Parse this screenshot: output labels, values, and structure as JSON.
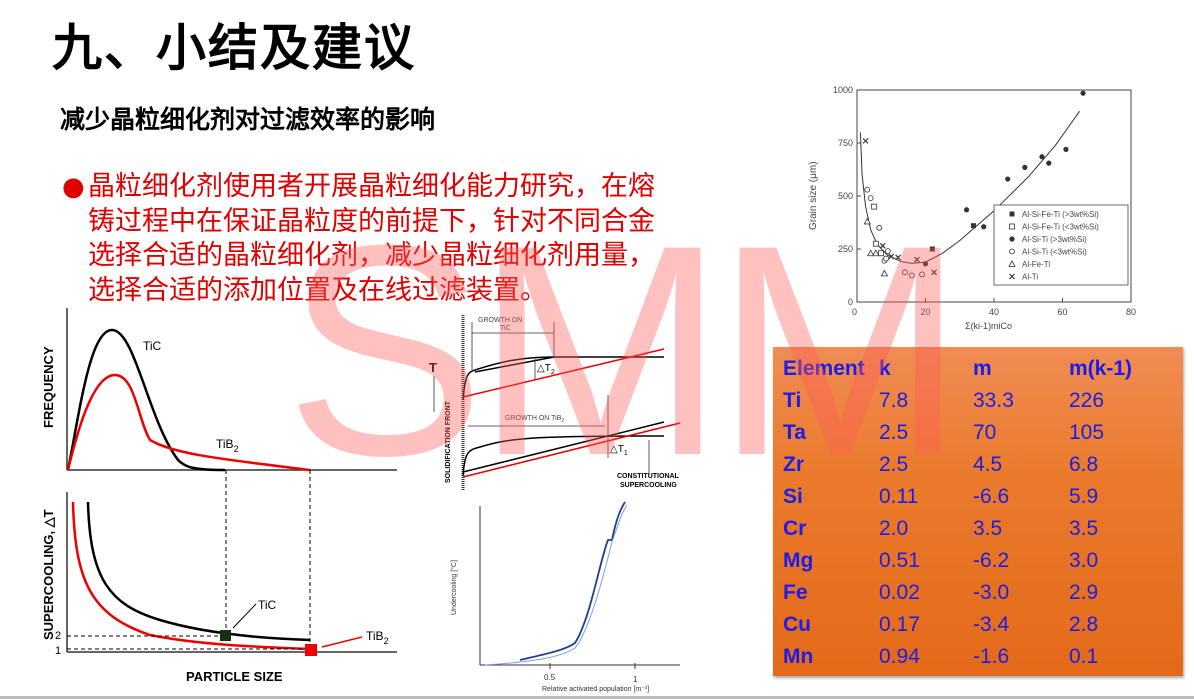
{
  "slide": {
    "title": "九、小结及建议",
    "subtitle": "减少晶粒细化剂对过滤效率的影响",
    "bullet_marker": "●",
    "bullet_lines": [
      "晶粒细化剂使用者开展晶粒细化能力研究，在熔",
      "铸过程中在保证晶粒度的前提下，针对不同合金",
      "选择合适的晶粒细化剂，减少晶粒细化剂用量，",
      "选择合适的添加位置及在线过滤装置。"
    ],
    "text_color": "#e00000",
    "watermark": "SMM"
  },
  "particle_figure": {
    "top_ylabel": "FREQUENCY",
    "bottom_ylabel": "SUPERCOOLING, △T",
    "xlabel": "PARTICLE SIZE",
    "label_tic_top": "TiC",
    "label_tib2_top": "TiB",
    "label_tic_bottom": "TiC",
    "label_tib2_bottom": "TiB",
    "sub2": "2",
    "tick_2": "2",
    "tick_1": "1",
    "colors": {
      "TiC": "#000000",
      "TiB2": "#ee0000"
    }
  },
  "growth_figure": {
    "growth_tic_line1": "GROWTH ON",
    "growth_tic_line2": "TiC",
    "growth_tib2": "GROWTH ON TiB",
    "sub2": "2",
    "dt2": "△T",
    "dt2_sub": "2",
    "dt1": "△T",
    "dt1_sub": "1",
    "t_label": "T",
    "front_label": "SOLIDIFICATION FRONT",
    "cs_line1": "CONSTITUTIONAL",
    "cs_line2": "SUPERCOOLING"
  },
  "undercooling_figure": {
    "ylabel": "Undercooling [°C]",
    "xlabel": "Relative activated population [m⁻³]",
    "xticks": [
      "0.5",
      "1"
    ]
  },
  "chart_data": {
    "type": "scatter",
    "xlabel": "Σ(ki-1)miCo",
    "ylabel": "Grain size  (μm)",
    "xlim": [
      0,
      80
    ],
    "ylim": [
      0,
      1000
    ],
    "xticks": [
      0,
      20,
      40,
      60,
      80
    ],
    "yticks": [
      0,
      250,
      500,
      750,
      1000
    ],
    "legend_position": "right",
    "series": [
      {
        "name": "Al-Si-Fe-Ti (>3wt%Si)",
        "marker": "filled-square",
        "points": [
          [
            22,
            250
          ],
          [
            34,
            360
          ]
        ]
      },
      {
        "name": "Al-Si-Fe-Ti (<3wt%Si)",
        "marker": "open-square",
        "points": [
          [
            5,
            450
          ],
          [
            5.5,
            275
          ],
          [
            7,
            230
          ]
        ]
      },
      {
        "name": "Al-Si-Ti (>3wt%Si)",
        "marker": "filled-circle",
        "points": [
          [
            20,
            180
          ],
          [
            32,
            435
          ],
          [
            37,
            355
          ],
          [
            44,
            580
          ],
          [
            49,
            635
          ],
          [
            54,
            685
          ],
          [
            56,
            655
          ],
          [
            61,
            720
          ],
          [
            66,
            985
          ]
        ]
      },
      {
        "name": "Al-Si-Ti (<3wt%Si)",
        "marker": "open-circle",
        "points": [
          [
            3,
            530
          ],
          [
            4,
            490
          ],
          [
            6.5,
            350
          ],
          [
            8,
            195
          ],
          [
            8.5,
            205
          ],
          [
            9,
            240
          ],
          [
            14,
            140
          ],
          [
            16,
            125
          ],
          [
            19,
            130
          ]
        ]
      },
      {
        "name": "Al-Fe-Ti",
        "marker": "open-triangle",
        "points": [
          [
            3,
            380
          ],
          [
            4,
            230
          ],
          [
            5.5,
            230
          ],
          [
            8,
            135
          ]
        ]
      },
      {
        "name": "Al-Ti",
        "marker": "cross",
        "points": [
          [
            2.5,
            760
          ],
          [
            7.5,
            265
          ],
          [
            10,
            215
          ],
          [
            12,
            210
          ],
          [
            17.5,
            200
          ],
          [
            22.5,
            140
          ]
        ]
      }
    ],
    "fit_curve": [
      [
        1,
        800
      ],
      [
        1.5,
        600
      ],
      [
        2.5,
        450
      ],
      [
        4,
        340
      ],
      [
        6,
        270
      ],
      [
        9,
        220
      ],
      [
        13,
        190
      ],
      [
        16,
        182
      ],
      [
        20,
        188
      ],
      [
        25,
        230
      ],
      [
        30,
        290
      ],
      [
        40,
        430
      ],
      [
        50,
        590
      ],
      [
        58,
        740
      ],
      [
        65,
        900
      ]
    ]
  },
  "elements_table": {
    "headers": [
      "Element",
      "k",
      "m",
      "m(k-1)"
    ],
    "rows": [
      [
        "Ti",
        "7.8",
        "33.3",
        "226"
      ],
      [
        "Ta",
        "2.5",
        "70",
        "105"
      ],
      [
        "Zr",
        "2.5",
        "4.5",
        "6.8"
      ],
      [
        "Si",
        "0.11",
        "-6.6",
        "5.9"
      ],
      [
        "Cr",
        "2.0",
        "3.5",
        "3.5"
      ],
      [
        "Mg",
        "0.51",
        "-6.2",
        "3.0"
      ],
      [
        "Fe",
        "0.02",
        "-3.0",
        "2.9"
      ],
      [
        "Cu",
        "0.17",
        "-3.4",
        "2.8"
      ],
      [
        "Mn",
        "0.94",
        "-1.6",
        "0.1"
      ]
    ],
    "text_color": "#1c1ee6",
    "background": "#ea7a2a"
  }
}
